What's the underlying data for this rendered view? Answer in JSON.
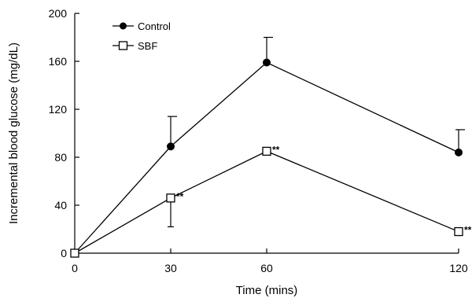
{
  "chart_data": {
    "type": "line",
    "title": "",
    "xlabel": "Time (mins)",
    "ylabel": "Incremental blood glucose (mg/dL)",
    "x": [
      0,
      30,
      60,
      120
    ],
    "xlim": [
      0,
      120
    ],
    "ylim": [
      0,
      200
    ],
    "xticks": [
      "0",
      "30",
      "60",
      "120"
    ],
    "yticks": [
      "0",
      "40",
      "80",
      "120",
      "160",
      "200"
    ],
    "grid": false,
    "legend_position": "top-left",
    "series": [
      {
        "name": "Control",
        "marker": "filled-circle",
        "color": "#000000",
        "values": [
          0,
          89,
          159,
          84
        ],
        "error_upper": [
          0,
          25,
          21,
          19
        ],
        "error_lower": [
          0,
          0,
          0,
          0
        ],
        "annotations": [
          "",
          "",
          "",
          ""
        ]
      },
      {
        "name": "SBF",
        "marker": "open-square",
        "color": "#000000",
        "values": [
          0,
          46,
          85,
          18
        ],
        "error_upper": [
          0,
          0,
          0,
          0
        ],
        "error_lower": [
          0,
          24,
          0,
          0
        ],
        "annotations": [
          "",
          "**",
          "**",
          "**"
        ]
      }
    ]
  }
}
